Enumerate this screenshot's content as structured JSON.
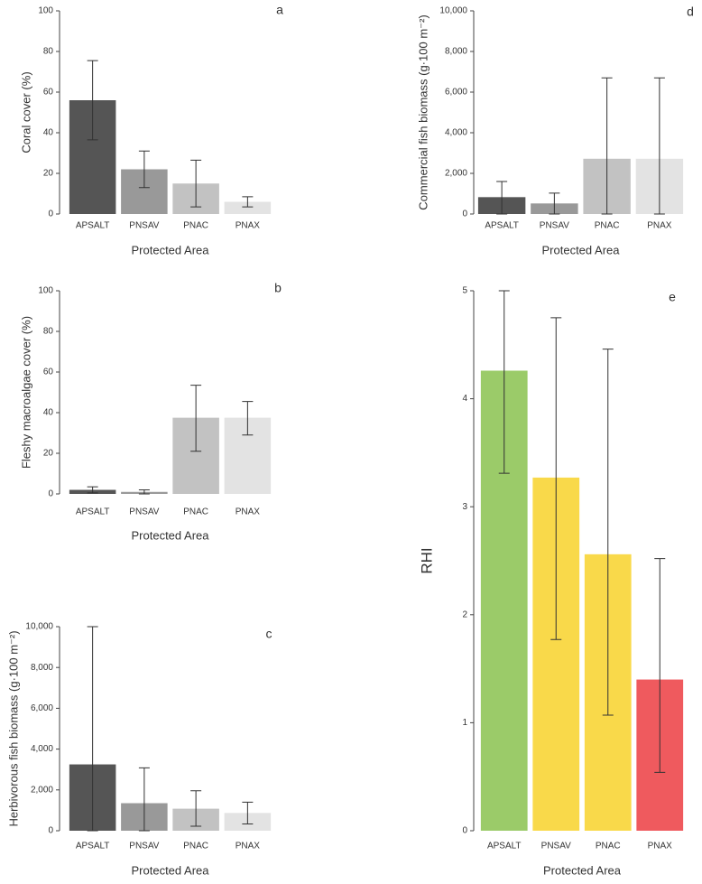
{
  "chart_data": [
    {
      "type": "bar",
      "panel_label": "a",
      "xlabel": "Protected Area",
      "ylabel": "Coral cover (%)",
      "categories": [
        "APSALT",
        "PNSAV",
        "PNAC",
        "PNAX"
      ],
      "values": [
        56,
        22,
        15,
        6
      ],
      "error_low": [
        36.5,
        13,
        3.5,
        3.5
      ],
      "error_high": [
        75.5,
        31,
        26.5,
        8.5
      ],
      "colors": [
        "#555555",
        "#999999",
        "#c2c2c2",
        "#e3e3e3"
      ],
      "ylim": [
        0,
        100
      ],
      "yticks": [
        0,
        20,
        40,
        60,
        80,
        100
      ]
    },
    {
      "type": "bar",
      "panel_label": "b",
      "xlabel": "Protected Area",
      "ylabel": "Fleshy macroalgae cover (%)",
      "categories": [
        "APSALT",
        "PNSAV",
        "PNAC",
        "PNAX"
      ],
      "values": [
        2,
        1,
        37.5,
        37.5
      ],
      "error_low": [
        0.5,
        0,
        21,
        29
      ],
      "error_high": [
        3.5,
        2,
        53.5,
        45.5
      ],
      "colors": [
        "#555555",
        "#999999",
        "#c2c2c2",
        "#e3e3e3"
      ],
      "ylim": [
        0,
        100
      ],
      "yticks": [
        0,
        20,
        40,
        60,
        80,
        100
      ]
    },
    {
      "type": "bar",
      "panel_label": "c",
      "xlabel": "Protected Area",
      "ylabel": "Herbivorous fish biomass (g·100 m⁻²)",
      "categories": [
        "APSALT",
        "PNSAV",
        "PNAC",
        "PNAX"
      ],
      "values": [
        3250,
        1350,
        1080,
        870
      ],
      "error_low": [
        0,
        0,
        220,
        330
      ],
      "error_high": [
        10000,
        3080,
        1960,
        1400
      ],
      "colors": [
        "#555555",
        "#999999",
        "#c2c2c2",
        "#e3e3e3"
      ],
      "ylim": [
        0,
        10000
      ],
      "yticks": [
        0,
        {
          "value": 2000,
          "label": "2,000"
        },
        {
          "value": 4000,
          "label": "4,000"
        },
        {
          "value": 6000,
          "label": "6,000"
        },
        {
          "value": 8000,
          "label": "8,000"
        },
        {
          "value": 10000,
          "label": "10,000"
        }
      ]
    },
    {
      "type": "bar",
      "panel_label": "d",
      "xlabel": "Protected Area",
      "ylabel": "Commercial fish biomass  (g·100 m⁻²)",
      "categories": [
        "APSALT",
        "PNSAV",
        "PNAC",
        "PNAX"
      ],
      "values": [
        830,
        520,
        2720,
        2720
      ],
      "error_low": [
        0,
        0,
        0,
        0
      ],
      "error_high": [
        1600,
        1030,
        6700,
        6700
      ],
      "colors": [
        "#555555",
        "#999999",
        "#c2c2c2",
        "#e3e3e3"
      ],
      "ylim": [
        0,
        10000
      ],
      "yticks": [
        0,
        {
          "value": 2000,
          "label": "2,000"
        },
        {
          "value": 4000,
          "label": "4,000"
        },
        {
          "value": 6000,
          "label": "6,000"
        },
        {
          "value": 8000,
          "label": "8,000"
        },
        {
          "value": 10000,
          "label": "10,000"
        }
      ]
    },
    {
      "type": "bar",
      "panel_label": "e",
      "xlabel": "Protected Area",
      "ylabel": "RHI",
      "categories": [
        "APSALT",
        "PNSAV",
        "PNAC",
        "PNAX"
      ],
      "values": [
        4.26,
        3.27,
        2.56,
        1.4
      ],
      "error_low": [
        3.31,
        1.77,
        1.07,
        0.54
      ],
      "error_high": [
        5.0,
        4.75,
        4.46,
        2.52
      ],
      "colors": [
        "#9bcb69",
        "#f9d94a",
        "#f9d94a",
        "#ef5a5e"
      ],
      "ylim": [
        0,
        5
      ],
      "yticks": [
        0,
        1,
        2,
        3,
        4,
        5
      ]
    }
  ]
}
